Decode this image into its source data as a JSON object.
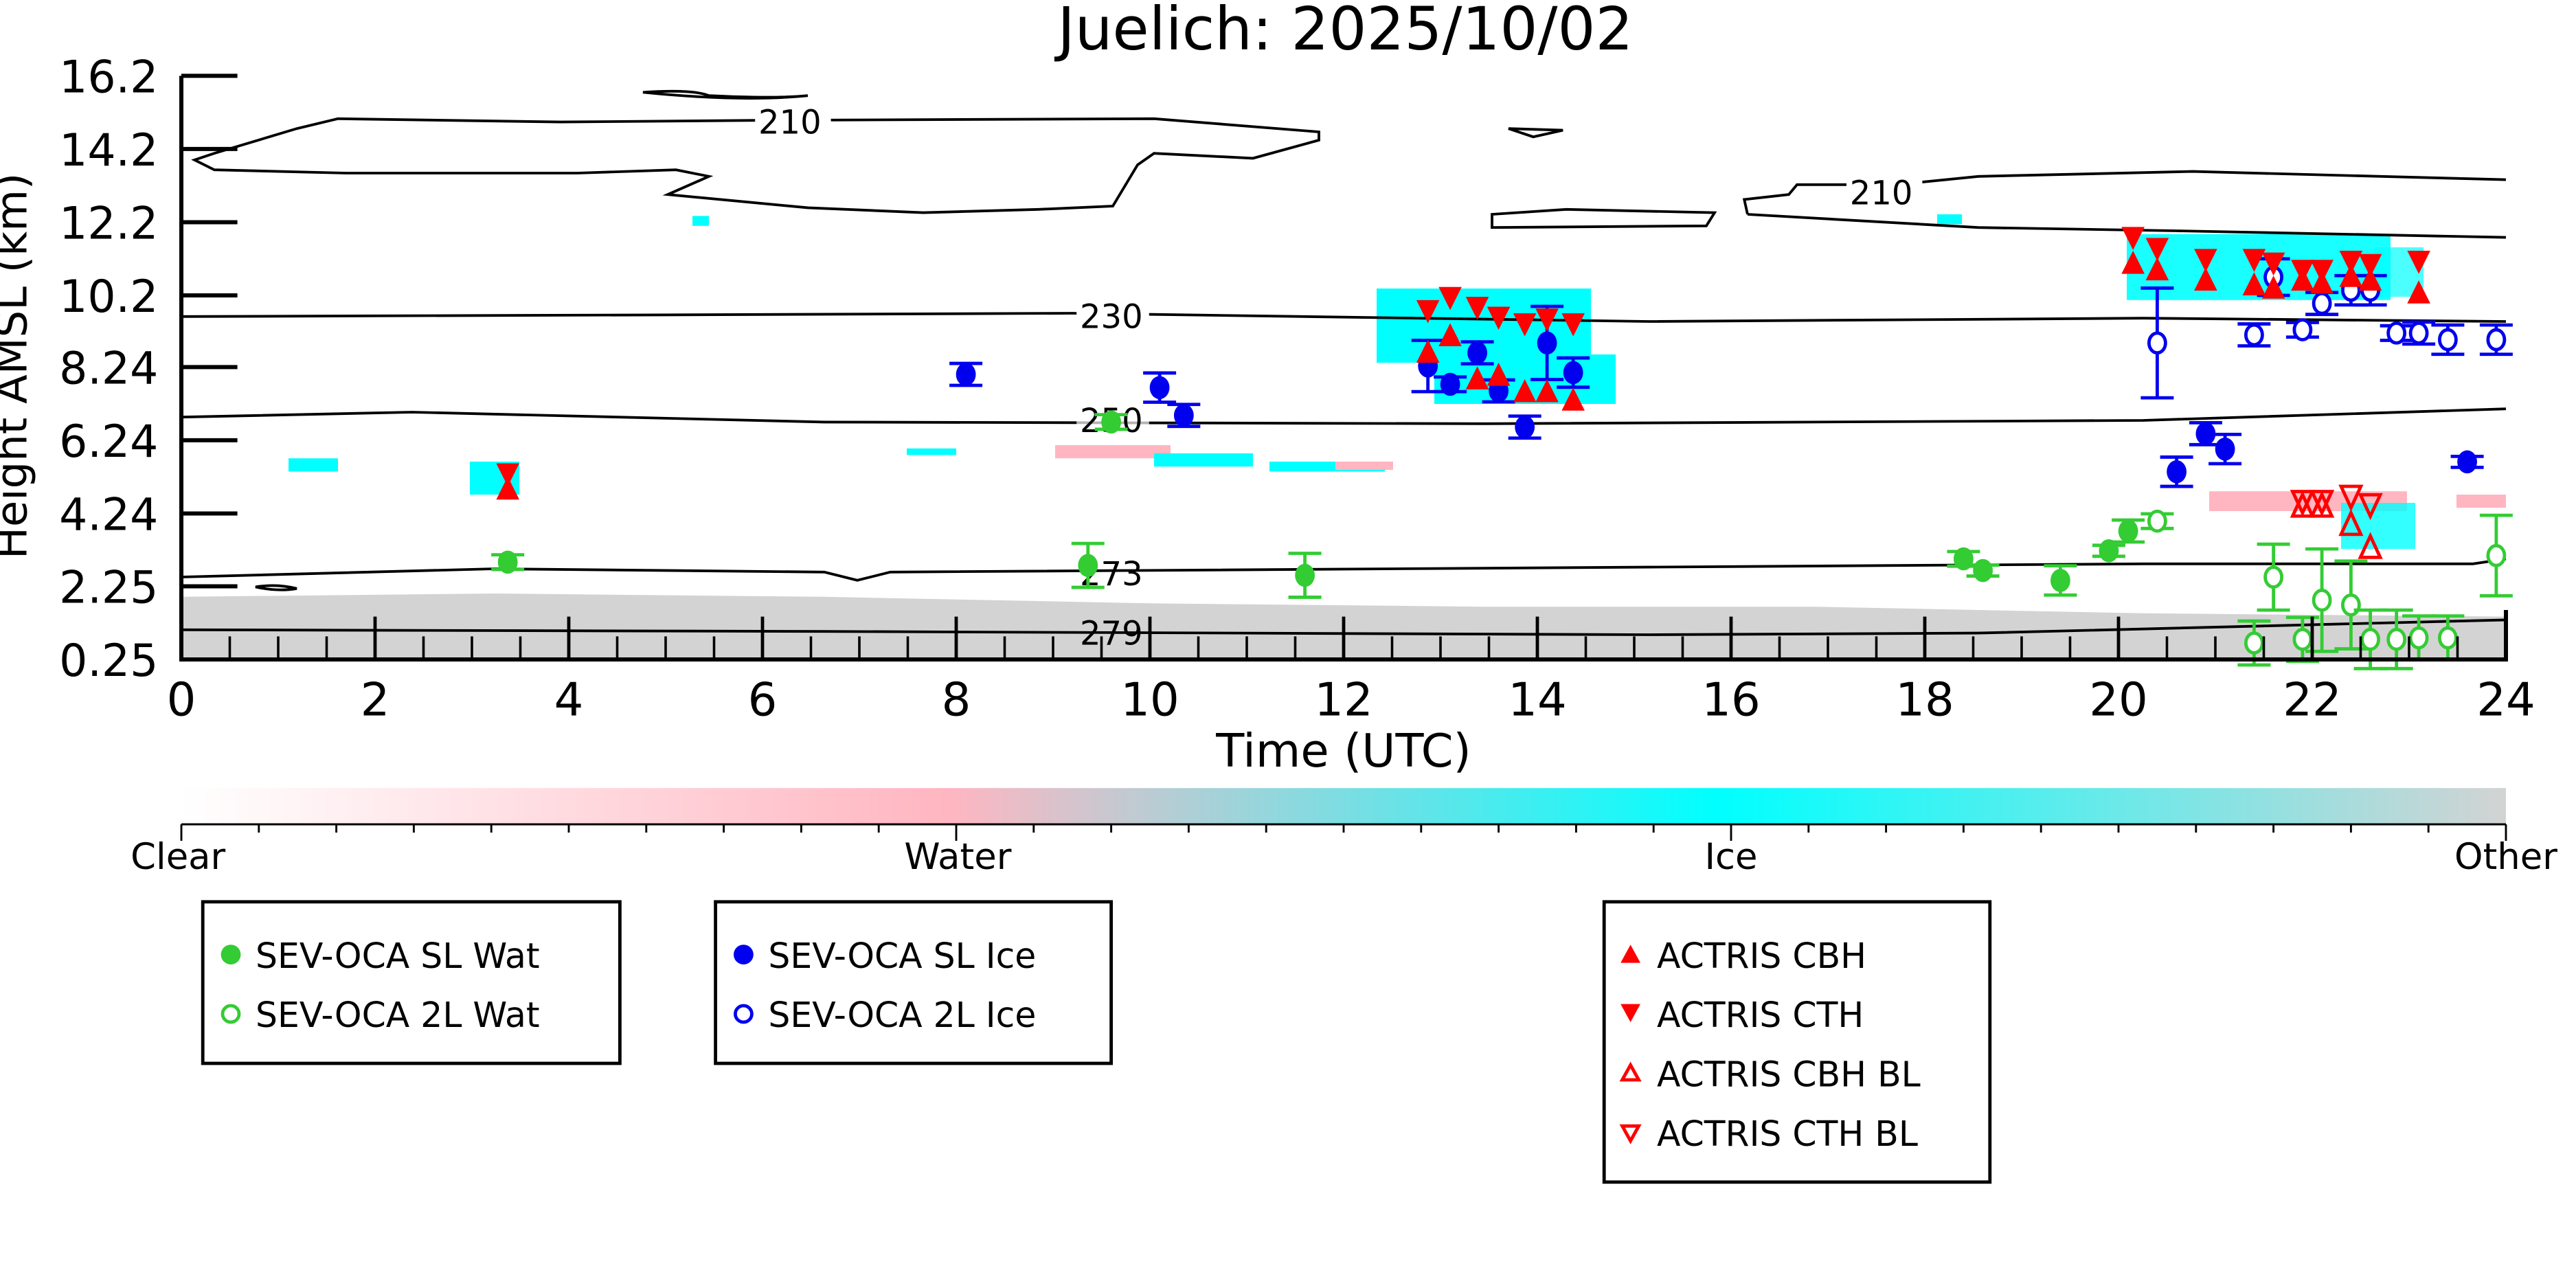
{
  "chart_data": {
    "type": "scatter",
    "title": "Juelich: 2025/10/02",
    "xlabel": "Time (UTC)",
    "ylabel": "Height AMSL (km)",
    "xlim": [
      0,
      24
    ],
    "ylim": [
      0.25,
      16.2
    ],
    "xticks": [
      "0",
      "2",
      "4",
      "6",
      "8",
      "10",
      "12",
      "14",
      "16",
      "18",
      "20",
      "22",
      "24"
    ],
    "yticks": [
      "0.25",
      "2.25",
      "4.24",
      "6.24",
      "8.24",
      "10.2",
      "12.2",
      "14.2",
      "16.2"
    ],
    "contour_labels": [
      "210",
      "210",
      "230",
      "250",
      "273",
      "279"
    ],
    "colorbar": {
      "labels": [
        "Clear",
        "Water",
        "Ice",
        "Other"
      ],
      "colors": [
        "#ffffff",
        "#ffb6c1",
        "#00ffff",
        "#d3d3d3"
      ]
    },
    "series": [
      {
        "name": "SEV-OCA SL Wat",
        "color": "#33cc33",
        "marker": "circle-filled",
        "points": [
          [
            3.37,
            2.91,
            0.2
          ],
          [
            9.36,
            2.82,
            0.6
          ],
          [
            9.6,
            6.74,
            0.2
          ],
          [
            11.6,
            2.55,
            0.6
          ],
          [
            18.4,
            3.0,
            0.2
          ],
          [
            18.6,
            2.68,
            0.15
          ],
          [
            19.4,
            2.41,
            0.4
          ],
          [
            19.9,
            3.22,
            0.15
          ],
          [
            20.1,
            3.76,
            0.3
          ]
        ]
      },
      {
        "name": "SEV-OCA 2L Wat",
        "color": "#33cc33",
        "marker": "circle-open",
        "points": [
          [
            20.4,
            4.03,
            0.2
          ],
          [
            21.6,
            2.5,
            0.9
          ],
          [
            21.4,
            0.7,
            0.6
          ],
          [
            21.9,
            0.8,
            0.6
          ],
          [
            22.1,
            1.87,
            1.4
          ],
          [
            22.4,
            1.74,
            1.2
          ],
          [
            22.6,
            0.8,
            0.8
          ],
          [
            22.87,
            0.8,
            0.8
          ],
          [
            23.1,
            0.84,
            0.6
          ],
          [
            23.4,
            0.84,
            0.6
          ],
          [
            23.9,
            3.09,
            1.1
          ]
        ]
      },
      {
        "name": "SEV-OCA SL Ice",
        "color": "#0000ee",
        "marker": "circle-filled",
        "points": [
          [
            8.1,
            8.04,
            0.3
          ],
          [
            10.1,
            7.68,
            0.4
          ],
          [
            10.35,
            6.92,
            0.3
          ],
          [
            12.87,
            8.27,
            0.7
          ],
          [
            13.1,
            7.77,
            0.2
          ],
          [
            13.38,
            8.63,
            0.3
          ],
          [
            13.6,
            7.59,
            0.3
          ],
          [
            13.87,
            6.6,
            0.3
          ],
          [
            14.1,
            8.9,
            1.0
          ],
          [
            14.37,
            8.09,
            0.4
          ],
          [
            20.6,
            5.38,
            0.4
          ],
          [
            20.9,
            6.42,
            0.3
          ],
          [
            21.1,
            6.0,
            0.4
          ],
          [
            23.6,
            5.65,
            0.15
          ]
        ]
      },
      {
        "name": "SEV-OCA 2L Ice",
        "color": "#0000ee",
        "marker": "circle-open",
        "points": [
          [
            20.4,
            8.9,
            1.5
          ],
          [
            21.4,
            9.12,
            0.3
          ],
          [
            21.6,
            10.7,
            0.5
          ],
          [
            21.9,
            9.26,
            0.2
          ],
          [
            22.1,
            9.98,
            0.3
          ],
          [
            22.4,
            10.34,
            0.4
          ],
          [
            22.6,
            10.34,
            0.4
          ],
          [
            22.87,
            9.17,
            0.2
          ],
          [
            23.1,
            9.17,
            0.3
          ],
          [
            23.4,
            8.99,
            0.4
          ],
          [
            23.9,
            8.99,
            0.4
          ]
        ]
      },
      {
        "name": "ACTRIS CBH",
        "color": "#ff0000",
        "marker": "triangle-up-filled",
        "points": [
          [
            3.37,
            4.89
          ],
          [
            12.87,
            8.63
          ],
          [
            13.1,
            9.08
          ],
          [
            13.38,
            7.9
          ],
          [
            13.6,
            8.0
          ],
          [
            13.87,
            7.55
          ],
          [
            14.1,
            7.55
          ],
          [
            14.37,
            7.32
          ],
          [
            20.15,
            11.06
          ],
          [
            20.4,
            10.88
          ],
          [
            20.9,
            10.6
          ],
          [
            21.4,
            10.47
          ],
          [
            21.6,
            10.38
          ],
          [
            21.9,
            10.6
          ],
          [
            22.1,
            10.52
          ],
          [
            22.4,
            10.7
          ],
          [
            22.6,
            10.6
          ],
          [
            23.1,
            10.25
          ]
        ]
      },
      {
        "name": "ACTRIS CTH",
        "color": "#ff0000",
        "marker": "triangle-down-filled",
        "points": [
          [
            3.37,
            5.34
          ],
          [
            12.87,
            9.8
          ],
          [
            13.1,
            10.16
          ],
          [
            13.38,
            9.89
          ],
          [
            13.6,
            9.62
          ],
          [
            13.87,
            9.44
          ],
          [
            14.1,
            9.57
          ],
          [
            14.37,
            9.44
          ],
          [
            20.15,
            11.8
          ],
          [
            20.4,
            11.5
          ],
          [
            20.9,
            11.2
          ],
          [
            21.4,
            11.2
          ],
          [
            21.6,
            11.1
          ],
          [
            21.9,
            10.9
          ],
          [
            22.1,
            10.9
          ],
          [
            22.4,
            11.15
          ],
          [
            22.6,
            11.06
          ],
          [
            23.1,
            11.15
          ]
        ]
      },
      {
        "name": "ACTRIS CBH BL",
        "color": "#ff0000",
        "marker": "triangle-up-open",
        "points": [
          [
            21.9,
            4.44
          ],
          [
            22.1,
            4.44
          ],
          [
            22.4,
            3.94
          ],
          [
            22.6,
            3.31
          ]
        ]
      },
      {
        "name": "ACTRIS CTH BL",
        "color": "#ff0000",
        "marker": "triangle-down-open",
        "points": [
          [
            21.9,
            4.57
          ],
          [
            22.1,
            4.57
          ],
          [
            22.4,
            4.71
          ],
          [
            22.6,
            4.48
          ]
        ]
      }
    ]
  }
}
